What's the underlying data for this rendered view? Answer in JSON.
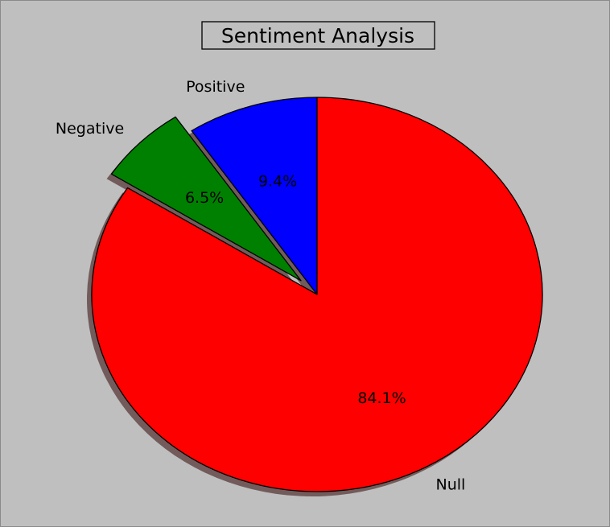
{
  "chart_data": {
    "type": "pie",
    "title": "Sentiment Analysis",
    "slices": [
      {
        "label": "Positive",
        "value": 9.4,
        "percent_label": "9.4%",
        "color": "#0000ff",
        "explode": false
      },
      {
        "label": "Negative",
        "value": 6.5,
        "percent_label": "6.5%",
        "color": "#008000",
        "explode": true
      },
      {
        "label": "Null",
        "value": 84.1,
        "percent_label": "84.1%",
        "color": "#ff0000",
        "explode": false
      }
    ],
    "start_angle_deg": 90,
    "direction": "counterclockwise",
    "shadow": true,
    "background_color": "#bfbfbf"
  }
}
